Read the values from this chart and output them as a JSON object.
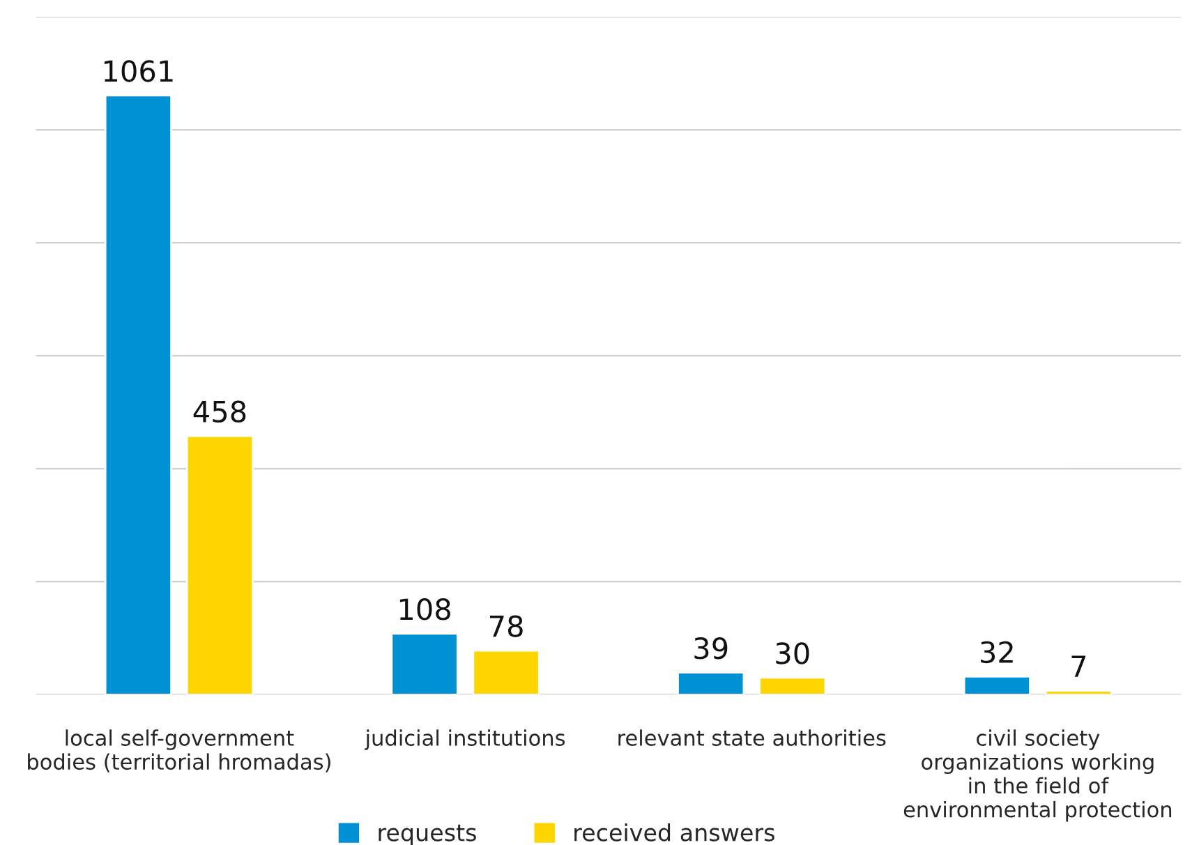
{
  "chart_data": {
    "type": "bar",
    "categories": [
      "local self-government\nbodies (territorial hromadas)",
      "judicial institutions",
      "relevant state authorities",
      "civil society\norganizations working\nin the field of\nenvironmental protection"
    ],
    "series": [
      {
        "name": "requests",
        "color": "#0091d5",
        "values": [
          1061,
          108,
          39,
          32
        ]
      },
      {
        "name": "received answers",
        "color": "#ffd500",
        "values": [
          458,
          78,
          30,
          7
        ]
      }
    ],
    "ylim": [
      0,
      1200
    ],
    "yticks": [
      {
        "value": 0,
        "label": null
      },
      {
        "value": 200,
        "label": null
      },
      {
        "value": 400,
        "label": null
      },
      {
        "value": 600,
        "label": null
      },
      {
        "value": 800,
        "label": null
      },
      {
        "value": 1000,
        "label": null
      },
      {
        "value": 1200,
        "label": null
      }
    ],
    "tick_labels": "x",
    "grid": "y",
    "data_labels": true,
    "legend": "bottom"
  }
}
